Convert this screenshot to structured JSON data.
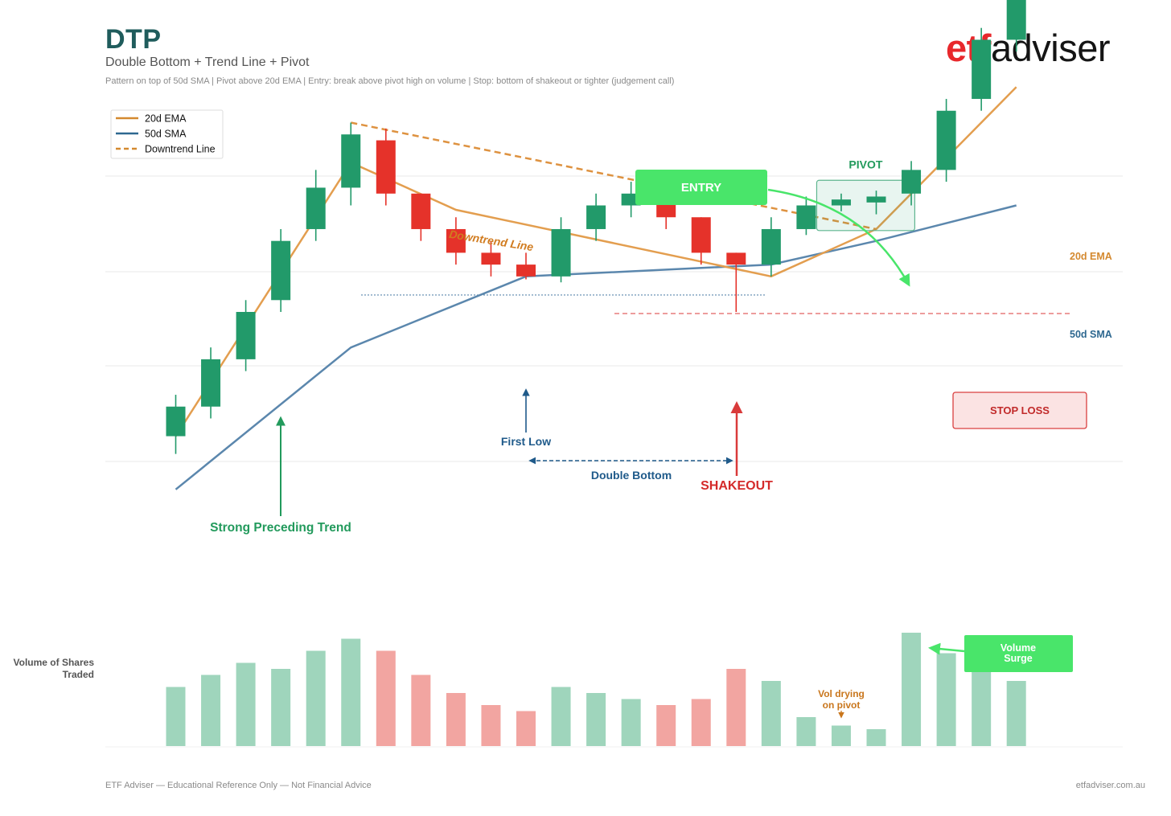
{
  "header": {
    "title": "DTP",
    "subtitle": "Double Bottom + Trend Line + Pivot",
    "note": "Pattern on top of 50d SMA  |  Pivot above 20d EMA  |  Entry: break above pivot high on volume  |  Stop: bottom of shakeout or tighter (judgement call)"
  },
  "logo": {
    "part1": "etf",
    "part2": "adviser"
  },
  "footer": {
    "left": "ETF Adviser — Educational Reference Only — Not Financial Advice",
    "right": "etfadviser.com.au"
  },
  "colors": {
    "up": "#229a6a",
    "down": "#e5322a",
    "ema": "#e39e4f",
    "sma": "#5b87ad",
    "downtrend": "#de9240",
    "entry": "#49e56a",
    "stop": "#d93a3a",
    "annotation_green": "#229a5c",
    "annotation_blue": "#1f5a8a",
    "vol_up": "#9fd5bc",
    "vol_down": "#f2a5a1"
  },
  "chart_data": {
    "type": "candlestick",
    "legend": {
      "position": "top-left",
      "entries": [
        {
          "label": "20d EMA",
          "style": "solid",
          "color": "#d4892f"
        },
        {
          "label": "50d SMA",
          "style": "solid",
          "color": "#2e6890"
        },
        {
          "label": "Downtrend Line",
          "style": "dashed",
          "color": "#d4892f"
        }
      ]
    },
    "price_range": [
      -90,
      520
    ],
    "grid": true,
    "candles": [
      {
        "x": 1,
        "open": 100,
        "close": 120,
        "high": 128,
        "low": 88
      },
      {
        "x": 2,
        "open": 120,
        "close": 152,
        "high": 160,
        "low": 112
      },
      {
        "x": 3,
        "open": 152,
        "close": 184,
        "high": 192,
        "low": 144
      },
      {
        "x": 4,
        "open": 192,
        "close": 232,
        "high": 240,
        "low": 184
      },
      {
        "x": 5,
        "open": 240,
        "close": 268,
        "high": 280,
        "low": 232
      },
      {
        "x": 6,
        "open": 268,
        "close": 304,
        "high": 312,
        "low": 256
      },
      {
        "x": 7,
        "open": 300,
        "close": 264,
        "high": 308,
        "low": 256
      },
      {
        "x": 8,
        "open": 264,
        "close": 240,
        "high": 264,
        "low": 232
      },
      {
        "x": 9,
        "open": 240,
        "close": 224,
        "high": 248,
        "low": 216
      },
      {
        "x": 10,
        "open": 224,
        "close": 216,
        "high": 232,
        "low": 208
      },
      {
        "x": 11,
        "open": 216,
        "close": 208,
        "high": 224,
        "low": 206
      },
      {
        "x": 12,
        "open": 208,
        "close": 240,
        "high": 248,
        "low": 204
      },
      {
        "x": 13,
        "open": 240,
        "close": 256,
        "high": 264,
        "low": 232
      },
      {
        "x": 14,
        "open": 256,
        "close": 264,
        "high": 272,
        "low": 248
      },
      {
        "x": 15,
        "open": 264,
        "close": 248,
        "high": 268,
        "low": 240
      },
      {
        "x": 16,
        "open": 248,
        "close": 224,
        "high": 248,
        "low": 216
      },
      {
        "x": 17,
        "open": 224,
        "close": 216,
        "high": 224,
        "low": 184
      },
      {
        "x": 18,
        "open": 216,
        "close": 240,
        "high": 248,
        "low": 208
      },
      {
        "x": 19,
        "open": 240,
        "close": 256,
        "high": 262,
        "low": 236
      },
      {
        "x": 20,
        "open": 256,
        "close": 260,
        "high": 264,
        "low": 252
      },
      {
        "x": 21,
        "open": 258,
        "close": 262,
        "high": 266,
        "low": 250
      },
      {
        "x": 22,
        "open": 264,
        "close": 280,
        "high": 286,
        "low": 256
      },
      {
        "x": 23,
        "open": 280,
        "close": 320,
        "high": 328,
        "low": 272
      },
      {
        "x": 24,
        "open": 328,
        "close": 368,
        "high": 376,
        "low": 320
      },
      {
        "x": 25,
        "open": 368,
        "close": 408,
        "high": 416,
        "low": 360
      }
    ],
    "ema_20d": [
      {
        "x": 1,
        "y": 100
      },
      {
        "x": 6,
        "y": 285
      },
      {
        "x": 9,
        "y": 253
      },
      {
        "x": 18,
        "y": 208
      },
      {
        "x": 21,
        "y": 240
      },
      {
        "x": 25,
        "y": 336
      }
    ],
    "sma_50d": [
      {
        "x": 1,
        "y": 64
      },
      {
        "x": 6,
        "y": 160
      },
      {
        "x": 11,
        "y": 208
      },
      {
        "x": 18,
        "y": 216
      },
      {
        "x": 21,
        "y": 232
      },
      {
        "x": 25,
        "y": 256
      }
    ],
    "downtrend_line": [
      {
        "x": 6,
        "y": 312
      },
      {
        "x": 21,
        "y": 240
      }
    ],
    "stop_level": 184,
    "first_low_level": 196,
    "volume": [
      {
        "x": 1,
        "value": 49,
        "dir": "up"
      },
      {
        "x": 2,
        "value": 59,
        "dir": "up"
      },
      {
        "x": 3,
        "value": 69,
        "dir": "up"
      },
      {
        "x": 4,
        "value": 64,
        "dir": "up"
      },
      {
        "x": 5,
        "value": 79,
        "dir": "up"
      },
      {
        "x": 6,
        "value": 89,
        "dir": "up"
      },
      {
        "x": 7,
        "value": 79,
        "dir": "down"
      },
      {
        "x": 8,
        "value": 59,
        "dir": "down"
      },
      {
        "x": 9,
        "value": 44,
        "dir": "down"
      },
      {
        "x": 10,
        "value": 34,
        "dir": "down"
      },
      {
        "x": 11,
        "value": 29,
        "dir": "down"
      },
      {
        "x": 12,
        "value": 49,
        "dir": "up"
      },
      {
        "x": 13,
        "value": 44,
        "dir": "up"
      },
      {
        "x": 14,
        "value": 39,
        "dir": "up"
      },
      {
        "x": 15,
        "value": 34,
        "dir": "down"
      },
      {
        "x": 16,
        "value": 39,
        "dir": "down"
      },
      {
        "x": 17,
        "value": 64,
        "dir": "down"
      },
      {
        "x": 18,
        "value": 54,
        "dir": "up"
      },
      {
        "x": 19,
        "value": 24,
        "dir": "up"
      },
      {
        "x": 20,
        "value": 17,
        "dir": "up"
      },
      {
        "x": 21,
        "value": 14,
        "dir": "up"
      },
      {
        "x": 22,
        "value": 94,
        "dir": "up"
      },
      {
        "x": 23,
        "value": 77,
        "dir": "up"
      },
      {
        "x": 24,
        "value": 62,
        "dir": "up"
      },
      {
        "x": 25,
        "value": 54,
        "dir": "up"
      }
    ],
    "volume_max": 100,
    "volume_ylabel": "Volume of Shares Traded",
    "annotations": {
      "downtrend_label": "Downtrend Line",
      "entry": "ENTRY",
      "pivot": "PIVOT",
      "ema_label": "20d EMA",
      "sma_label": "50d SMA",
      "stop_loss": "STOP LOSS",
      "first_low": "First Low",
      "double_bottom": "Double Bottom",
      "shakeout": "SHAKEOUT",
      "preceding_trend": "Strong Preceding Trend",
      "vol_drying_1": "Vol drying",
      "vol_drying_2": "on pivot",
      "volume_surge_1": "Volume",
      "volume_surge_2": "Surge"
    }
  }
}
